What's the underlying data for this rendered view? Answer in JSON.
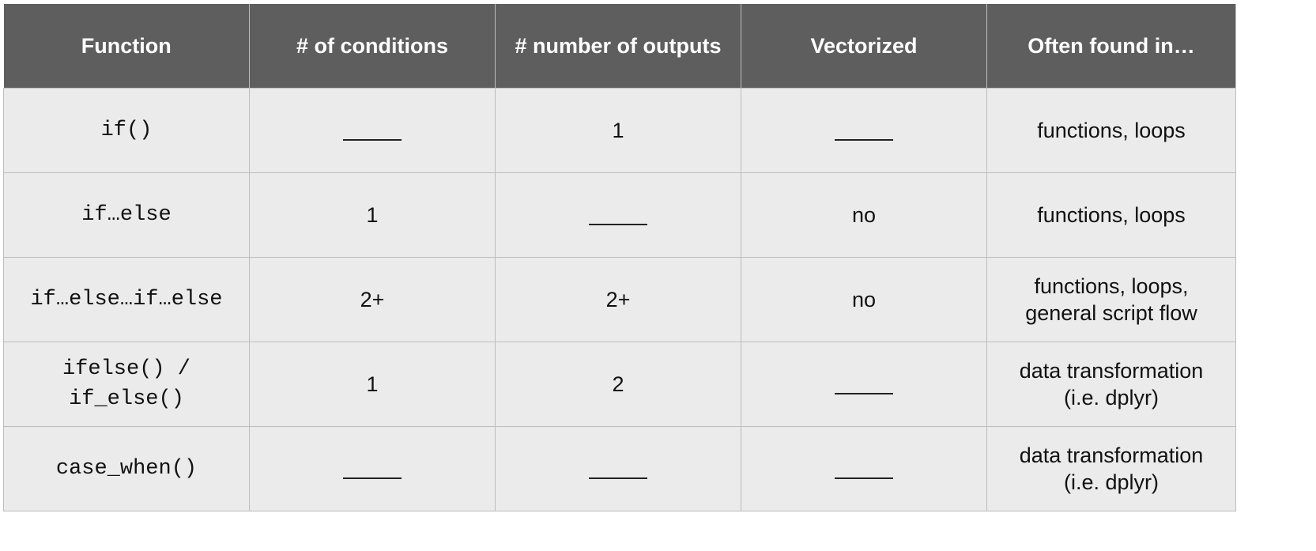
{
  "table": {
    "headers": [
      "Function",
      "# of conditions",
      "# number of outputs",
      "Vectorized",
      "Often found in…"
    ],
    "rows": [
      {
        "function": [
          "if()"
        ],
        "conditions": "",
        "outputs": "1",
        "vectorized": "",
        "found_in": [
          "functions, loops"
        ]
      },
      {
        "function": [
          "if…else"
        ],
        "conditions": "1",
        "outputs": "",
        "vectorized": "no",
        "found_in": [
          "functions, loops"
        ]
      },
      {
        "function": [
          "if…else…if…else"
        ],
        "conditions": "2+",
        "outputs": "2+",
        "vectorized": "no",
        "found_in": [
          "functions, loops,",
          "general script flow"
        ]
      },
      {
        "function": [
          "ifelse() /",
          "if_else()"
        ],
        "conditions": "1",
        "outputs": "2",
        "vectorized": "",
        "found_in": [
          "data transformation",
          "(i.e. dplyr)"
        ]
      },
      {
        "function": [
          "case_when()"
        ],
        "conditions": "",
        "outputs": "",
        "vectorized": "",
        "found_in": [
          "data transformation",
          "(i.e. dplyr)"
        ]
      }
    ]
  }
}
